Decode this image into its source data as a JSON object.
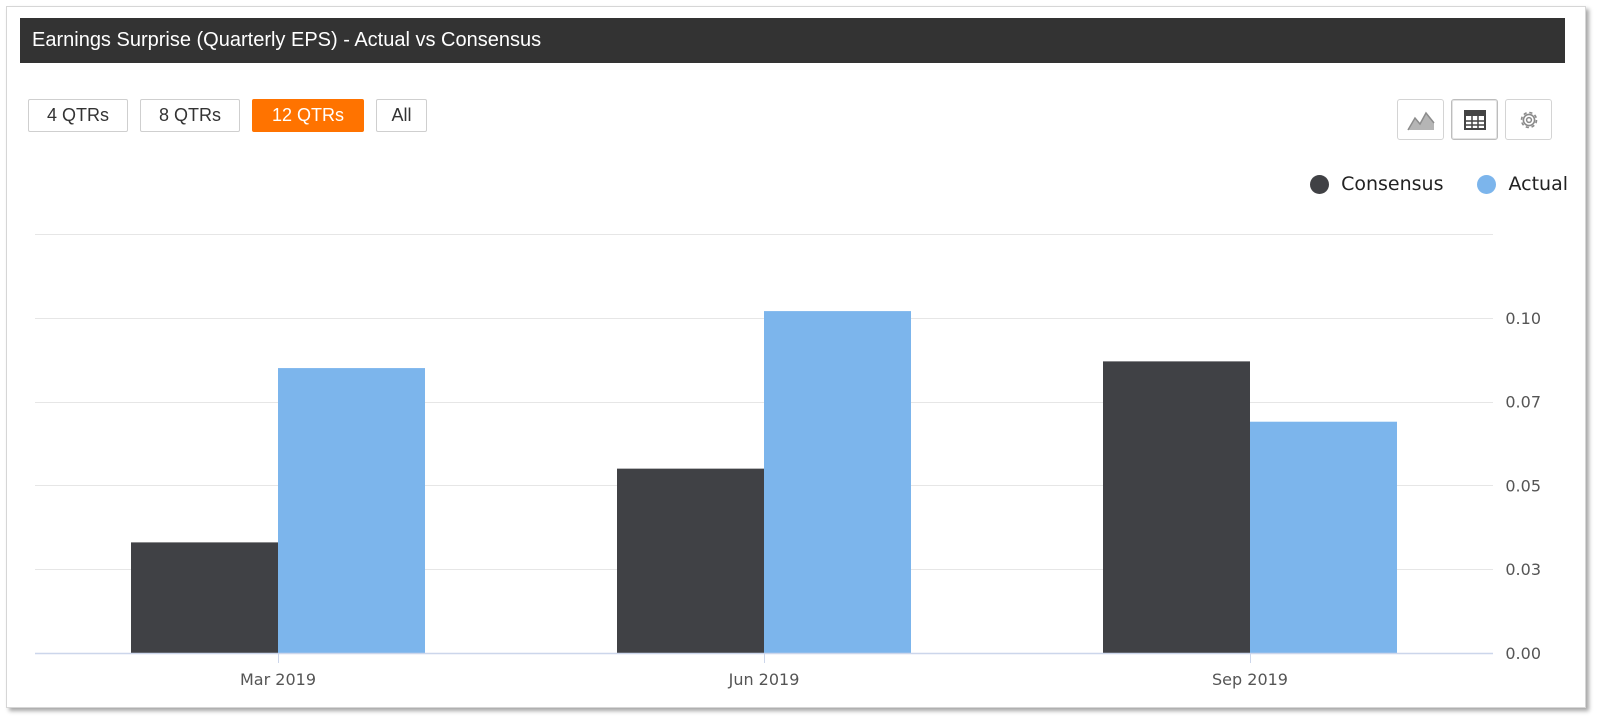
{
  "header": {
    "title": "Earnings Surprise (Quarterly EPS) - Actual vs Consensus"
  },
  "range_buttons": [
    {
      "label": "4 QTRs",
      "active": false
    },
    {
      "label": "8 QTRs",
      "active": false
    },
    {
      "label": "12 QTRs",
      "active": true
    },
    {
      "label": "All",
      "active": false
    }
  ],
  "toolbar": {
    "chart_view_icon": "area-chart-icon",
    "table_view_icon": "table-icon",
    "settings_icon": "gear-icon"
  },
  "colors": {
    "accent": "#ff7300",
    "consensus": "#404145",
    "actual": "#7cb5ec",
    "title_bar": "#333333"
  },
  "chart_data": {
    "type": "bar",
    "title": "",
    "categories": [
      "Mar 2019",
      "Jun 2019",
      "Sep 2019"
    ],
    "series": [
      {
        "name": "Consensus",
        "values": [
          0.033,
          0.055,
          0.087
        ]
      },
      {
        "name": "Actual",
        "values": [
          0.085,
          0.102,
          0.069
        ]
      }
    ],
    "y_ticks": [
      "0.00",
      "0.03",
      "0.05",
      "0.07",
      "0.10"
    ],
    "y_tick_values": [
      0.0,
      0.025,
      0.05,
      0.075,
      0.1
    ],
    "ylim": [
      0,
      0.125
    ],
    "y_axis_side": "right",
    "grid": true,
    "legend_position": "top-right"
  }
}
